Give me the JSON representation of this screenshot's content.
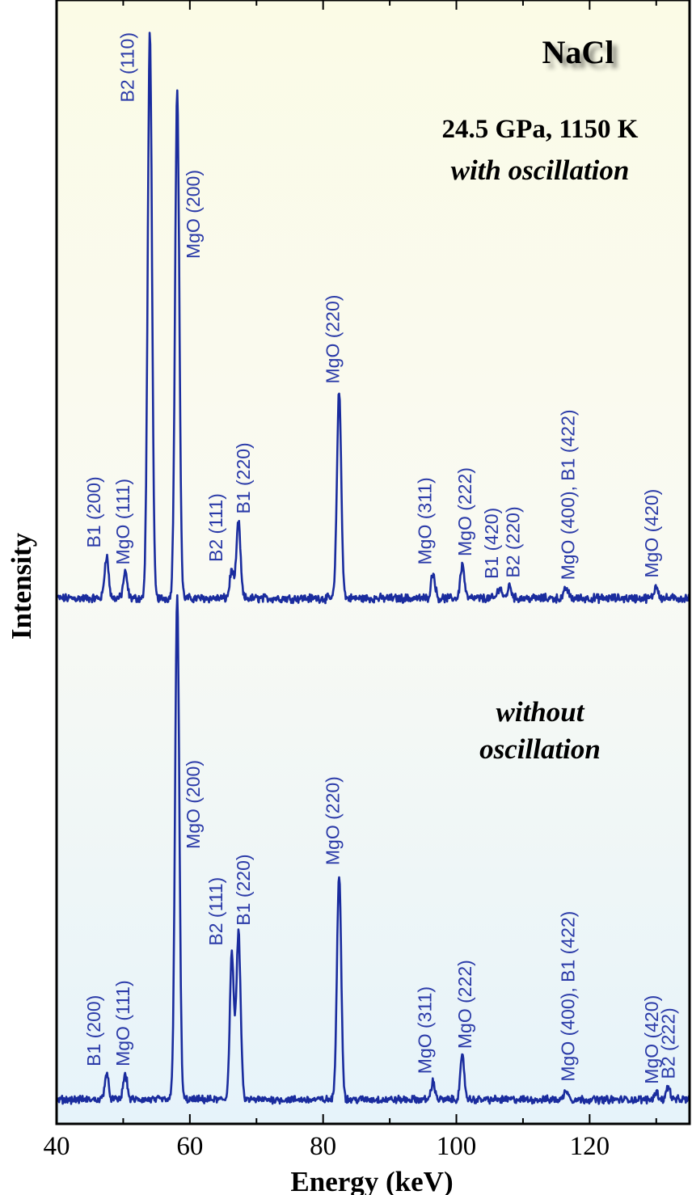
{
  "chart_data": {
    "type": "line",
    "title": "NaCl",
    "xlabel": "Energy (keV)",
    "ylabel": "Intensity",
    "xlim": [
      40,
      135
    ],
    "x_ticks": [
      40,
      60,
      80,
      100,
      120
    ],
    "y_ticks_visible": false,
    "colors": {
      "trace": "#1a2c9e",
      "label": "#2a3aa8",
      "text": "#000000",
      "frame": "#000000"
    },
    "series": [
      {
        "name": "with oscillation",
        "annotation": [
          "24.5 GPa, 1150 K",
          "with oscillation"
        ],
        "baseline": 0,
        "peaks": [
          {
            "x": 47.5,
            "height": 0.075,
            "label": "B1 (200)"
          },
          {
            "x": 50.3,
            "height": 0.045,
            "label": "MgO (111)"
          },
          {
            "x": 54.0,
            "height": 1.0,
            "label": "B2 (110)"
          },
          {
            "x": 58.1,
            "height": 0.895,
            "label": "MgO (200)"
          },
          {
            "x": 66.3,
            "height": 0.05,
            "label": "B2 (111)"
          },
          {
            "x": 67.3,
            "height": 0.135,
            "label": "B1 (220)"
          },
          {
            "x": 82.4,
            "height": 0.365,
            "label": "MgO (220)"
          },
          {
            "x": 96.5,
            "height": 0.045,
            "label": "MgO (311)"
          },
          {
            "x": 100.9,
            "height": 0.06,
            "label": "MgO (222)"
          },
          {
            "x": 106.5,
            "height": 0.02,
            "label": "B1 (420)"
          },
          {
            "x": 108.0,
            "height": 0.022,
            "label": "B2 (220)"
          },
          {
            "x": 116.5,
            "height": 0.018,
            "label": "MgO (400), B1 (422)"
          },
          {
            "x": 130.0,
            "height": 0.022,
            "label": "MgO (420)"
          }
        ]
      },
      {
        "name": "without oscillation",
        "annotation": [
          "without",
          "oscillation"
        ],
        "baseline": 0,
        "peaks": [
          {
            "x": 47.5,
            "height": 0.05,
            "label": "B1 (200)"
          },
          {
            "x": 50.3,
            "height": 0.05,
            "label": "MgO (111)"
          },
          {
            "x": 58.1,
            "height": 1.0,
            "label": "MgO (200)"
          },
          {
            "x": 66.3,
            "height": 0.29,
            "label": "B2 (111)"
          },
          {
            "x": 67.3,
            "height": 0.33,
            "label": "B1 (220)"
          },
          {
            "x": 82.4,
            "height": 0.45,
            "label": "MgO (220)"
          },
          {
            "x": 96.5,
            "height": 0.035,
            "label": "MgO (311)"
          },
          {
            "x": 100.9,
            "height": 0.085,
            "label": "MgO (222)"
          },
          {
            "x": 116.5,
            "height": 0.02,
            "label": "MgO (400), B1 (422)"
          },
          {
            "x": 130.0,
            "height": 0.015,
            "label": "MgO (420)"
          },
          {
            "x": 131.8,
            "height": 0.025,
            "label": "B2 (222)"
          }
        ]
      }
    ]
  }
}
